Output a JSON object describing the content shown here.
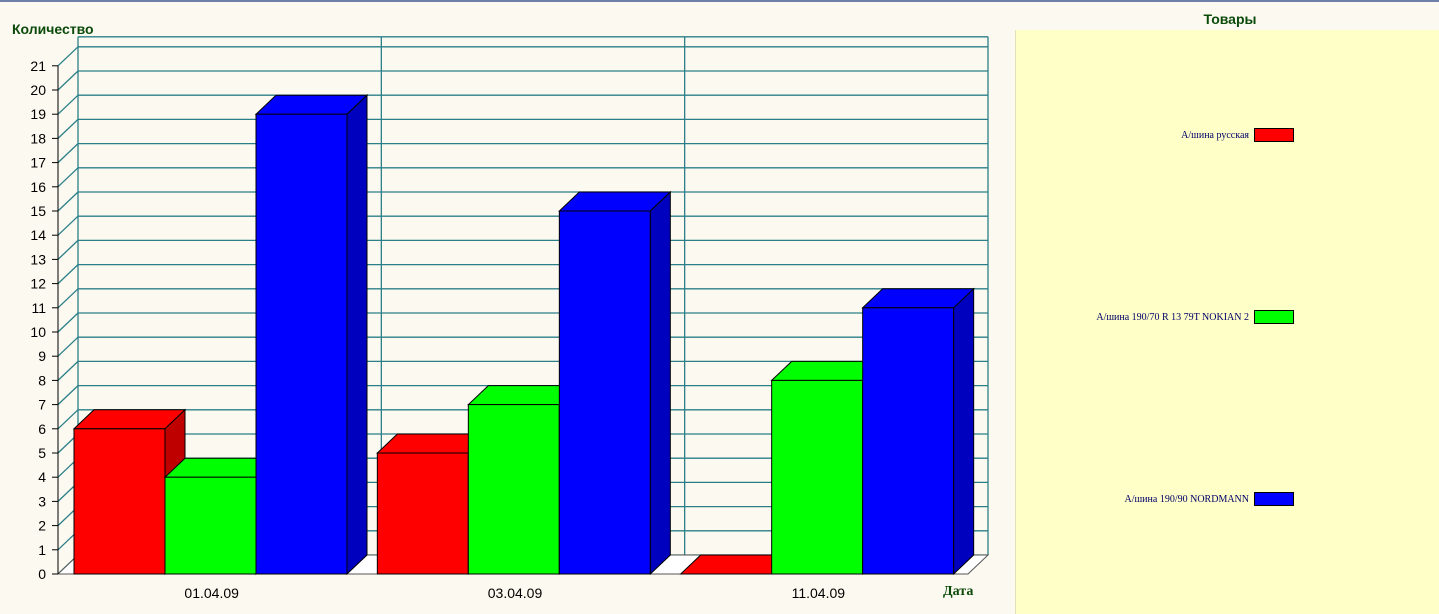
{
  "chart_data": {
    "type": "bar",
    "ylabel": "Количество",
    "xlabel": "Дата",
    "categories": [
      "01.04.09",
      "03.04.09",
      "11.04.09"
    ],
    "ylim": [
      0,
      21
    ],
    "yticks": [
      0,
      1,
      2,
      3,
      4,
      5,
      6,
      7,
      8,
      9,
      10,
      11,
      12,
      13,
      14,
      15,
      16,
      17,
      18,
      19,
      20,
      21
    ],
    "grid": true,
    "three_d": true,
    "legend_title": "Товары",
    "legend_position": "right",
    "series": [
      {
        "name": "А/шина русская",
        "color": "#ff0000",
        "values": [
          6,
          5,
          0
        ]
      },
      {
        "name": "А/шина 190/70 R 13 79T NOKIAN 2",
        "color": "#00ff00",
        "values": [
          4,
          7,
          8
        ]
      },
      {
        "name": "А/шина 190/90 NORDMANN",
        "color": "#0000ff",
        "values": [
          19,
          15,
          11
        ]
      }
    ]
  }
}
